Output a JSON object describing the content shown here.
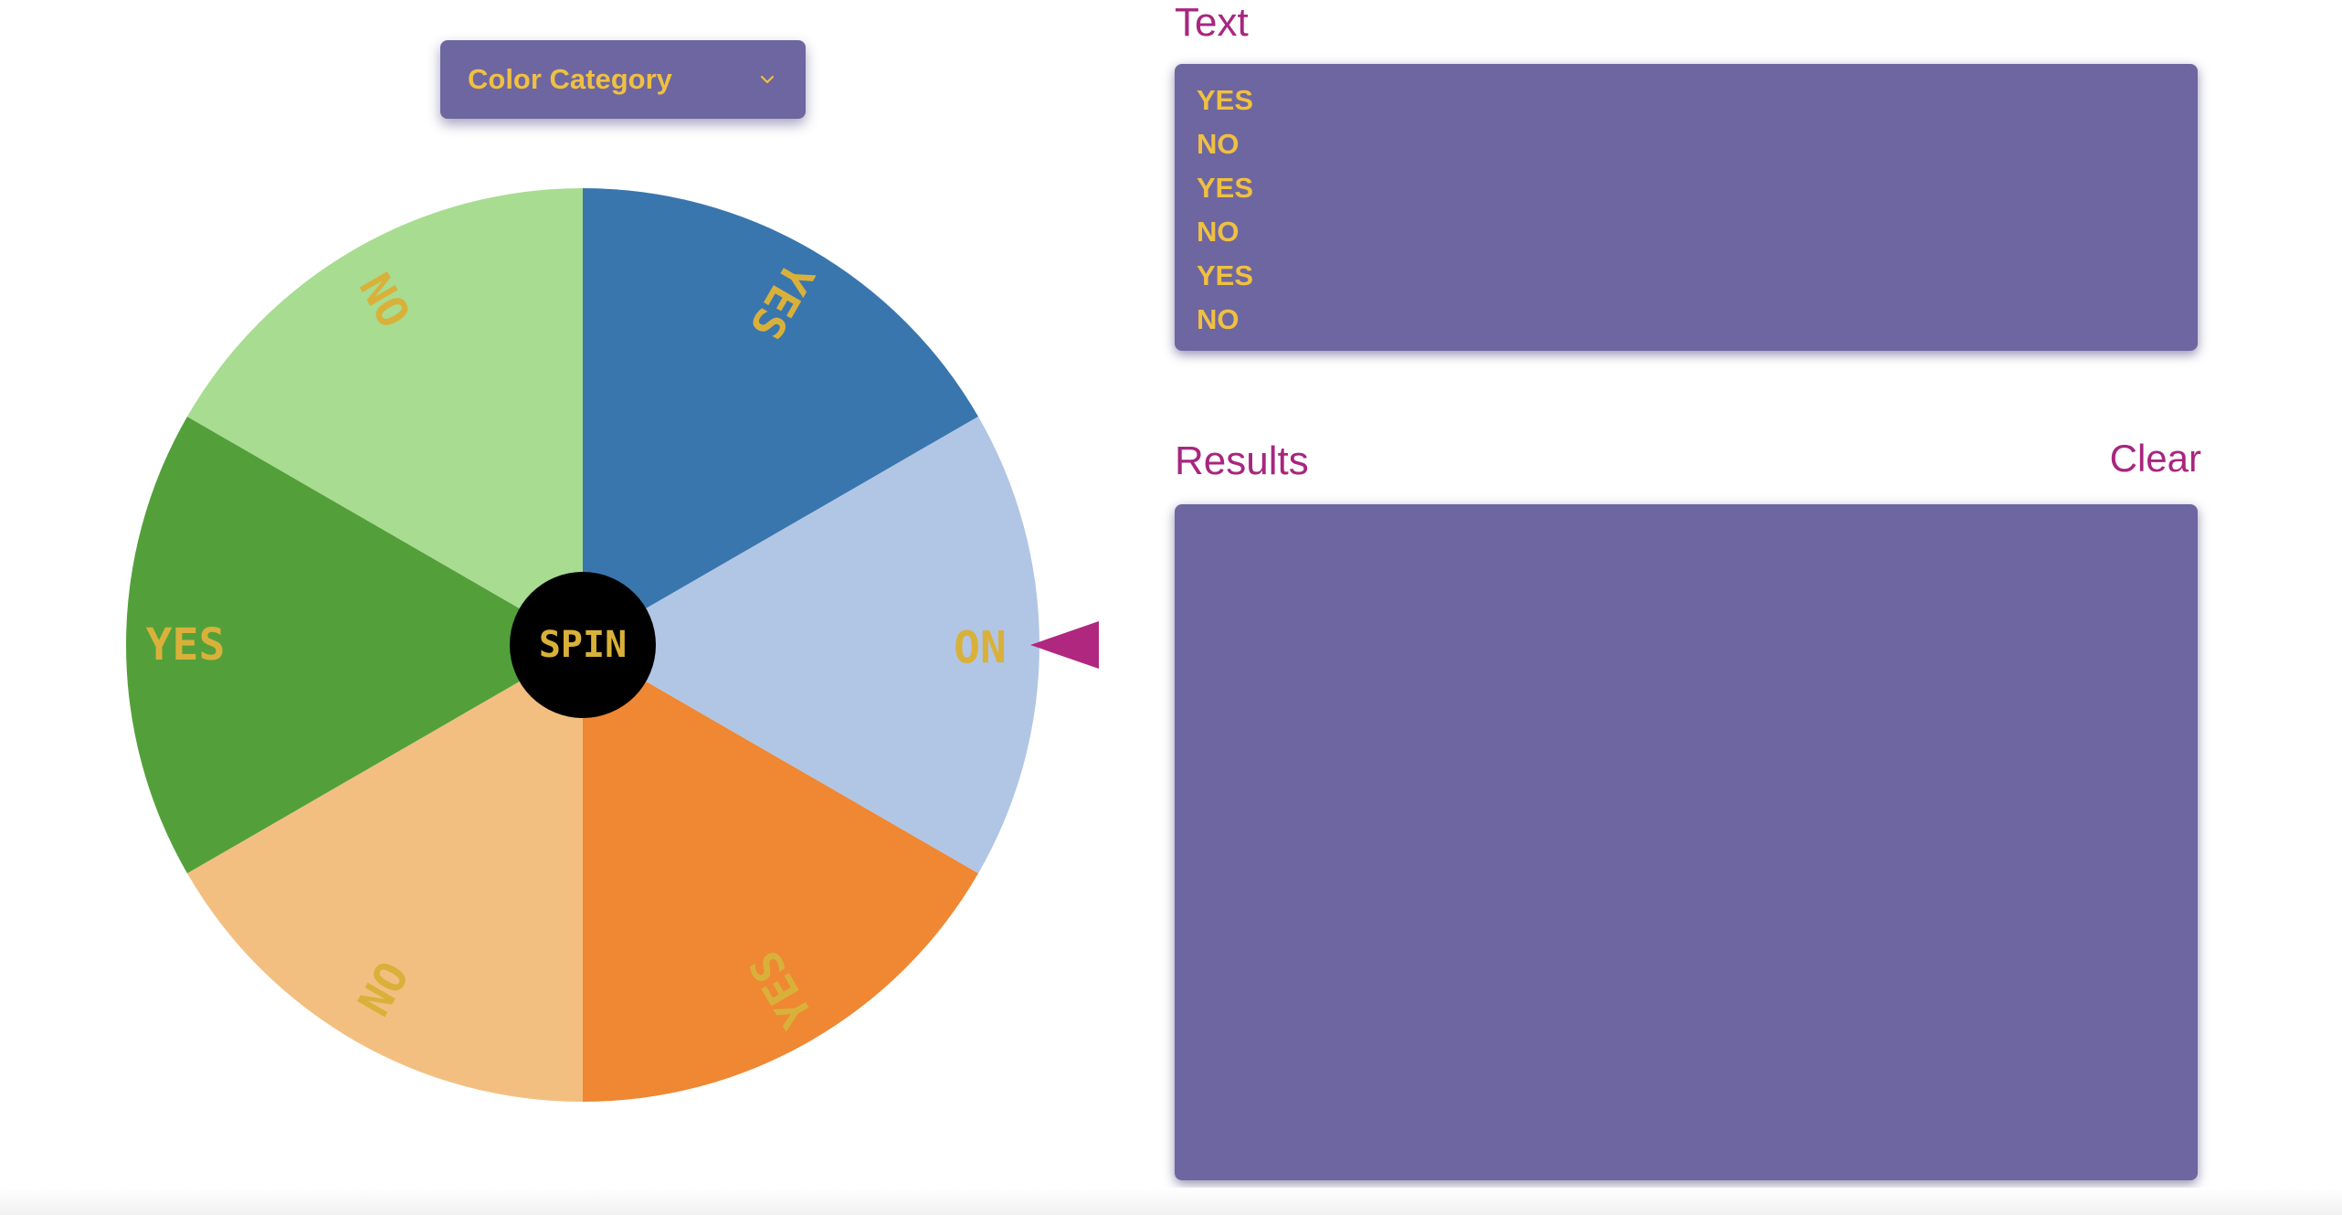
{
  "category_select": {
    "value": "Color Category",
    "icon": "chevron-down-icon"
  },
  "wheel": {
    "center_button_label": "SPIN",
    "pointer_color": "#b0277f",
    "segments": [
      {
        "label": "YES",
        "color": "#3a76ae"
      },
      {
        "label": "NO",
        "color": "#b1c6e5"
      },
      {
        "label": "YES",
        "color": "#ef8733"
      },
      {
        "label": "NO",
        "color": "#f3bf81"
      },
      {
        "label": "YES",
        "color": "#53a03b"
      },
      {
        "label": "NO",
        "color": "#a8dc90"
      }
    ]
  },
  "text_panel": {
    "title": "Text",
    "lines": [
      "YES",
      "NO",
      "YES",
      "NO",
      "YES",
      "NO"
    ]
  },
  "results_panel": {
    "title": "Results",
    "clear_label": "Clear",
    "items": []
  },
  "colors": {
    "panel_bg": "#6e66a0",
    "accent_text": "#f0c040",
    "title_color": "#a8267f"
  }
}
